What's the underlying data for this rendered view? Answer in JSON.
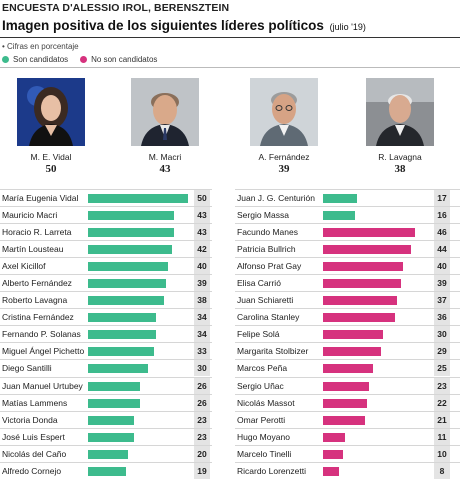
{
  "header": {
    "survey": "ENCUESTA D'ALESSIO IROL, BERENSZTEIN",
    "title": "Imagen positiva de los siguientes líderes políticos",
    "subtitle": "(julio '19)",
    "note": "Cifras en porcentaje"
  },
  "legend": {
    "candidates": "Son candidatos",
    "non_candidates": "No son candidatos"
  },
  "colors": {
    "candidate": "#3dbb8d",
    "non_candidate": "#d6327e"
  },
  "leaders": [
    {
      "name": "M. E. Vidal",
      "value": "50"
    },
    {
      "name": "M. Macri",
      "value": "43"
    },
    {
      "name": "A. Fernández",
      "value": "39"
    },
    {
      "name": "R. Lavagna",
      "value": "38"
    }
  ],
  "chart_data": [
    {
      "type": "bar",
      "categories": [
        "María Eugenia Vidal",
        "Mauricio Macri",
        "Horacio R. Larreta",
        "Martín Lousteau",
        "Axel Kicillof",
        "Alberto Fernández",
        "Roberto Lavagna",
        "Cristina Fernández",
        "Fernando P. Solanas",
        "Miguel Ángel Pichetto",
        "Diego Santilli",
        "Juan Manuel Urtubey",
        "Matías Lammens",
        "Victoria Donda",
        "José Luis Espert",
        "Nicolás del Caño",
        "Alfredo Cornejo"
      ],
      "values": [
        50,
        43,
        43,
        42,
        40,
        39,
        38,
        34,
        34,
        33,
        30,
        26,
        26,
        23,
        23,
        20,
        19
      ],
      "candidate": [
        true,
        true,
        true,
        true,
        true,
        true,
        true,
        true,
        true,
        true,
        true,
        true,
        true,
        true,
        true,
        true,
        true
      ]
    },
    {
      "type": "bar",
      "categories": [
        "Juan J. G. Centurión",
        "Sergio Massa",
        "Facundo Manes",
        "Patricia Bullrich",
        "Alfonso Prat Gay",
        "Elisa Carrió",
        "Juan Schiaretti",
        "Carolina Stanley",
        "Felipe Solá",
        "Margarita Stolbizer",
        "Marcos Peña",
        "Sergio Uñac",
        "Nicolás Massot",
        "Omar Perotti",
        "Hugo Moyano",
        "Marcelo Tinelli",
        "Ricardo Lorenzetti"
      ],
      "values": [
        17,
        16,
        46,
        44,
        40,
        39,
        37,
        36,
        30,
        29,
        25,
        23,
        22,
        21,
        11,
        10,
        8
      ],
      "candidate": [
        true,
        true,
        false,
        false,
        false,
        false,
        false,
        false,
        false,
        false,
        false,
        false,
        false,
        false,
        false,
        false,
        false
      ]
    }
  ]
}
